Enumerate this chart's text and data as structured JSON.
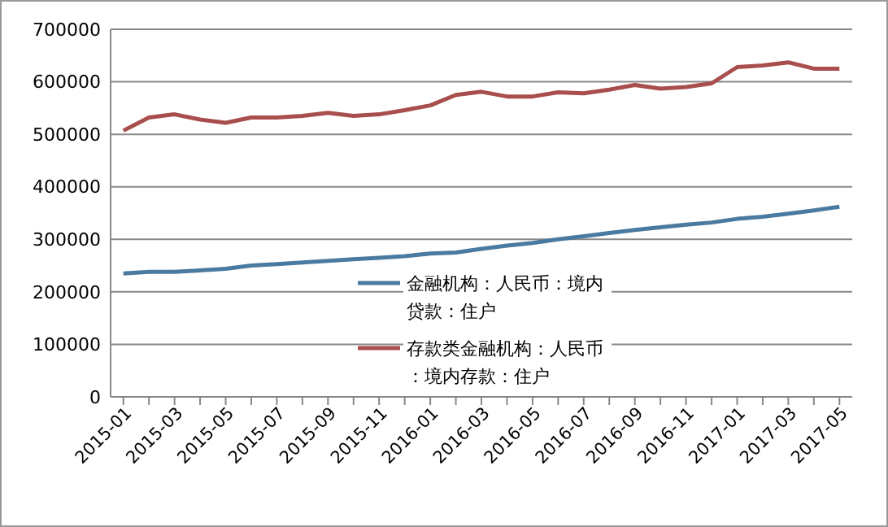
{
  "chart_data": {
    "type": "line",
    "categories": [
      "2015-01",
      null,
      "2015-03",
      null,
      "2015-05",
      null,
      "2015-07",
      null,
      "2015-09",
      null,
      "2015-11",
      null,
      "2016-01",
      null,
      "2016-03",
      null,
      "2016-05",
      null,
      "2016-07",
      null,
      "2016-09",
      null,
      "2016-11",
      null,
      "2017-01",
      null,
      "2017-03",
      null,
      "2017-05"
    ],
    "series": [
      {
        "name": "金融机构：人民币：境内贷款：住户",
        "color": "#4a7aa0",
        "values": [
          235000,
          238000,
          238000,
          241000,
          244000,
          250000,
          253000,
          256000,
          259000,
          262000,
          265000,
          268000,
          273000,
          275000,
          282000,
          288000,
          293000,
          300000,
          306000,
          312000,
          318000,
          323000,
          328000,
          332000,
          339000,
          343000,
          349000,
          355000,
          362000
        ]
      },
      {
        "name": "存款类金融机构：人民币：境内存款：住户",
        "color": "#a84e4c",
        "values": [
          507000,
          532000,
          538000,
          528000,
          522000,
          532000,
          532000,
          535000,
          541000,
          535000,
          538000,
          546000,
          555000,
          575000,
          581000,
          572000,
          572000,
          580000,
          578000,
          585000,
          594000,
          587000,
          590000,
          597000,
          628000,
          631000,
          637000,
          625000,
          625000
        ]
      }
    ],
    "ylim": [
      0,
      700000
    ],
    "yticks": [
      0,
      100000,
      200000,
      300000,
      400000,
      500000,
      600000,
      700000
    ],
    "grid": "y",
    "legend": "bottom",
    "marker": "none",
    "line_style": "solid"
  }
}
